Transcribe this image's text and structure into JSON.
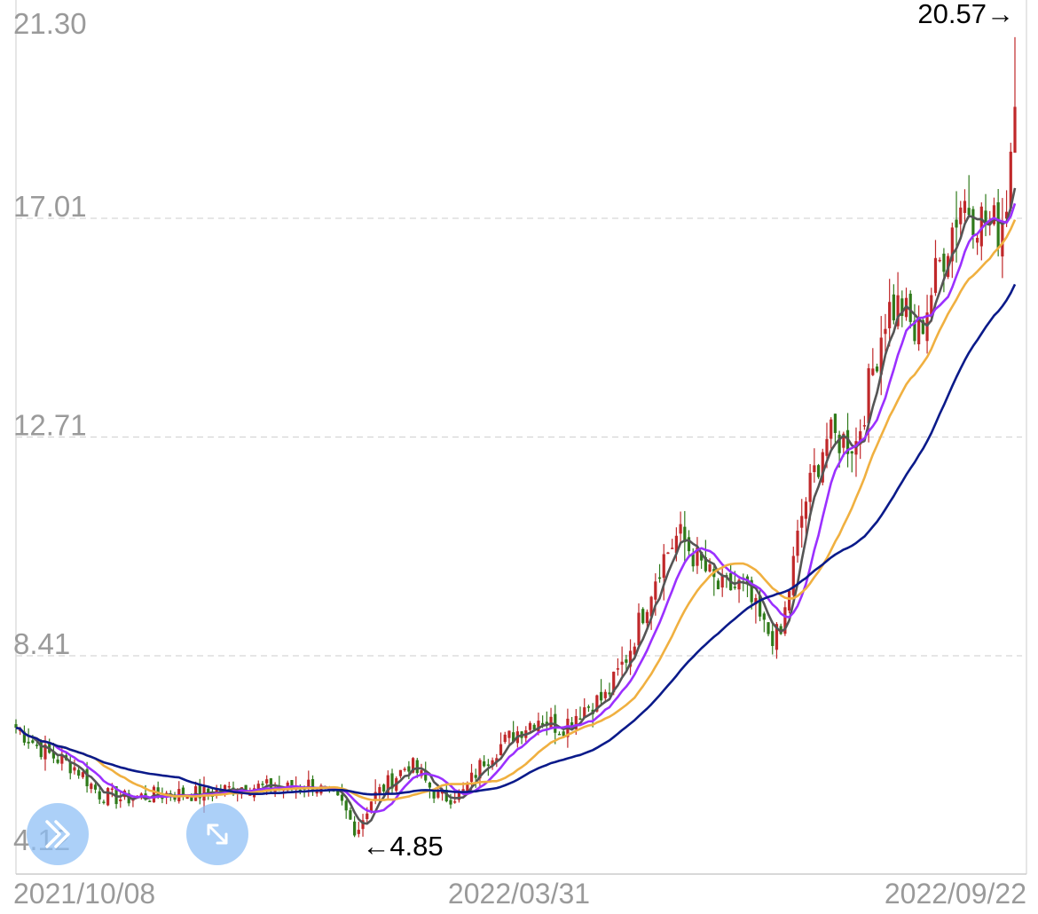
{
  "chart_data": {
    "type": "candlestick",
    "y_ticks": [
      "21.30",
      "17.01",
      "12.71",
      "8.41",
      "4.12"
    ],
    "y_tick_values": [
      21.3,
      17.01,
      12.71,
      8.41,
      4.12
    ],
    "ylim": [
      4.12,
      21.3
    ],
    "x_labels": [
      "2021/10/08",
      "2022/03/31",
      "2022/09/22"
    ],
    "grid": "horizontal-dashed",
    "high_annotation": "20.57→",
    "high_value": 20.57,
    "low_annotation": "←4.85",
    "low_value": 4.85,
    "bar_count": 240,
    "price_path": [
      [
        0,
        7.0
      ],
      [
        8,
        6.5
      ],
      [
        16,
        6.2
      ],
      [
        22,
        5.7
      ],
      [
        28,
        5.6
      ],
      [
        40,
        5.7
      ],
      [
        50,
        5.7
      ],
      [
        60,
        5.85
      ],
      [
        72,
        5.8
      ],
      [
        78,
        5.9
      ],
      [
        86,
        5.5
      ],
      [
        90,
        4.95
      ],
      [
        94,
        5.6
      ],
      [
        104,
        6.3
      ],
      [
        112,
        5.6
      ],
      [
        118,
        5.7
      ],
      [
        124,
        6.4
      ],
      [
        132,
        6.9
      ],
      [
        138,
        7.2
      ],
      [
        144,
        7.0
      ],
      [
        150,
        7.4
      ],
      [
        156,
        7.6
      ],
      [
        162,
        8.5
      ],
      [
        170,
        10.2
      ],
      [
        175,
        10.8
      ],
      [
        180,
        10.3
      ],
      [
        186,
        9.7
      ],
      [
        192,
        9.8
      ],
      [
        198,
        8.9
      ],
      [
        202,
        8.75
      ],
      [
        208,
        11.3
      ],
      [
        214,
        12.7
      ],
      [
        222,
        12.6
      ],
      [
        230,
        15.2
      ],
      [
        234,
        15.3
      ],
      [
        238,
        14.6
      ],
      [
        244,
        16.1
      ],
      [
        250,
        17.4
      ],
      [
        255,
        17.0
      ],
      [
        260,
        16.8
      ],
      [
        262,
        17.5
      ],
      [
        264,
        19.6
      ]
    ],
    "series": [
      {
        "color": "#555555",
        "period": 5
      },
      {
        "color": "#9b30ff",
        "period": 10
      },
      {
        "color": "#f0b040",
        "period": 20
      },
      {
        "color": "#0a1a8a",
        "period": 40
      }
    ],
    "up_color": "#c0282a",
    "down_color": "#2f7a1a"
  },
  "controls": {
    "left_icon": "double-chevron-icon",
    "right_icon": "expand-arrows-icon"
  }
}
